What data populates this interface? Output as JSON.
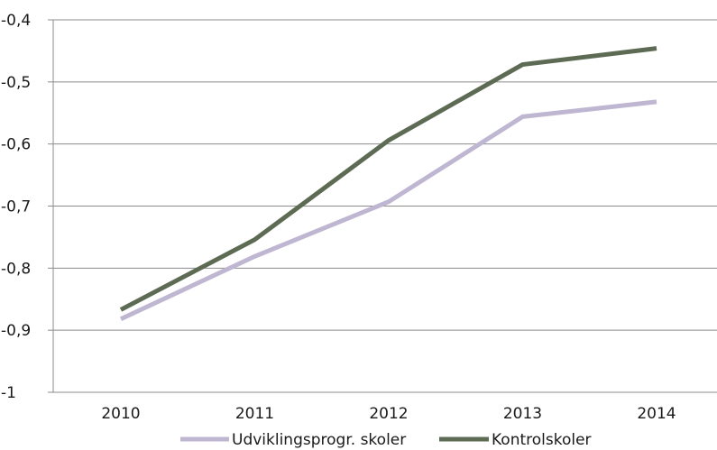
{
  "chart_data": {
    "type": "line",
    "title": "",
    "xlabel": "",
    "ylabel": "",
    "categories": [
      "2010",
      "2011",
      "2012",
      "2013",
      "2014"
    ],
    "ylim": [
      -1,
      -0.4
    ],
    "yticks": [
      -0.4,
      -0.5,
      -0.6,
      -0.7,
      -0.8,
      -0.9,
      -1
    ],
    "ytick_labels": [
      "-0,4",
      "-0,5",
      "-0,6",
      "-0,7",
      "-0,8",
      "-0,9",
      "-1"
    ],
    "grid": true,
    "legend_position": "bottom",
    "series": [
      {
        "name": "Udviklingsprogr. skoler",
        "color": "#bfb6d2",
        "values": [
          -0.882,
          -0.781,
          -0.693,
          -0.556,
          -0.532
        ]
      },
      {
        "name": "Kontrolskoler",
        "color": "#5e6b54",
        "values": [
          -0.867,
          -0.754,
          -0.594,
          -0.472,
          -0.446
        ]
      }
    ]
  }
}
